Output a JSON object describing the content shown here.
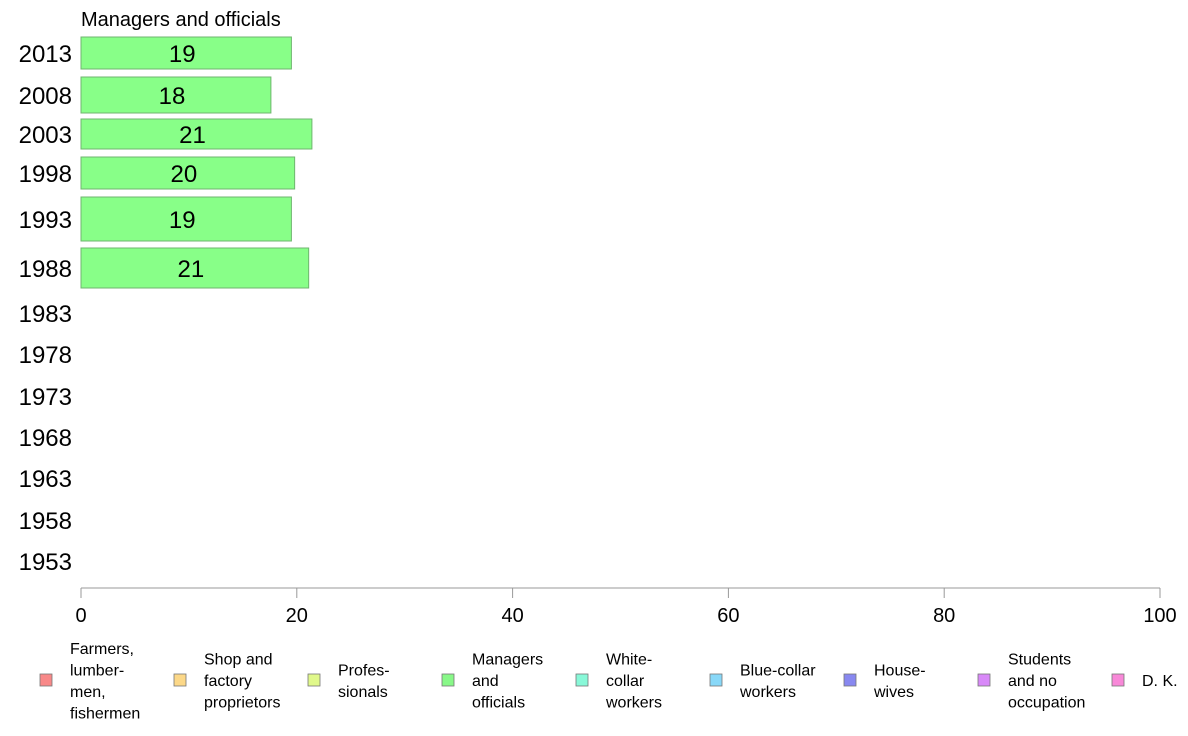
{
  "chart_data": {
    "type": "bar",
    "orientation": "horizontal",
    "title": "Managers and officials",
    "categories": [
      "2013",
      "2008",
      "2003",
      "1998",
      "1993",
      "1988",
      "1983",
      "1978",
      "1973",
      "1968",
      "1963",
      "1958",
      "1953"
    ],
    "series": [
      {
        "name": "Managers and officials",
        "color": "#88ff88",
        "values": [
          19.5,
          17.6,
          21.4,
          19.8,
          19.5,
          21.1,
          null,
          null,
          null,
          null,
          null,
          null,
          null
        ],
        "labels": [
          "19",
          "18",
          "21",
          "20",
          "19",
          "21",
          "",
          "",
          "",
          "",
          "",
          "",
          ""
        ]
      }
    ],
    "xlim": [
      0,
      100
    ],
    "xticks": [
      "0",
      "20",
      "40",
      "60",
      "80",
      "100"
    ],
    "grid": false,
    "legend": {
      "placement": "bottom",
      "items": [
        {
          "lines": [
            "Farmers,",
            "lumber-",
            "men,",
            "fishermen"
          ],
          "color": "#f88888"
        },
        {
          "lines": [
            "Shop and",
            "factory",
            "proprietors"
          ],
          "color": "#fcd888"
        },
        {
          "lines": [
            "Profes-",
            "sionals"
          ],
          "color": "#e0f88a"
        },
        {
          "lines": [
            "Managers",
            "and",
            "officials"
          ],
          "color": "#88f888"
        },
        {
          "lines": [
            "White-",
            "collar",
            "workers"
          ],
          "color": "#88f8d8"
        },
        {
          "lines": [
            "Blue-collar",
            "workers"
          ],
          "color": "#88d8f8"
        },
        {
          "lines": [
            "House-",
            "wives"
          ],
          "color": "#8888f0"
        },
        {
          "lines": [
            "Students",
            "and no",
            "occupation"
          ],
          "color": "#d888f8"
        },
        {
          "lines": [
            "D. K."
          ],
          "color": "#f888d8"
        }
      ]
    }
  }
}
